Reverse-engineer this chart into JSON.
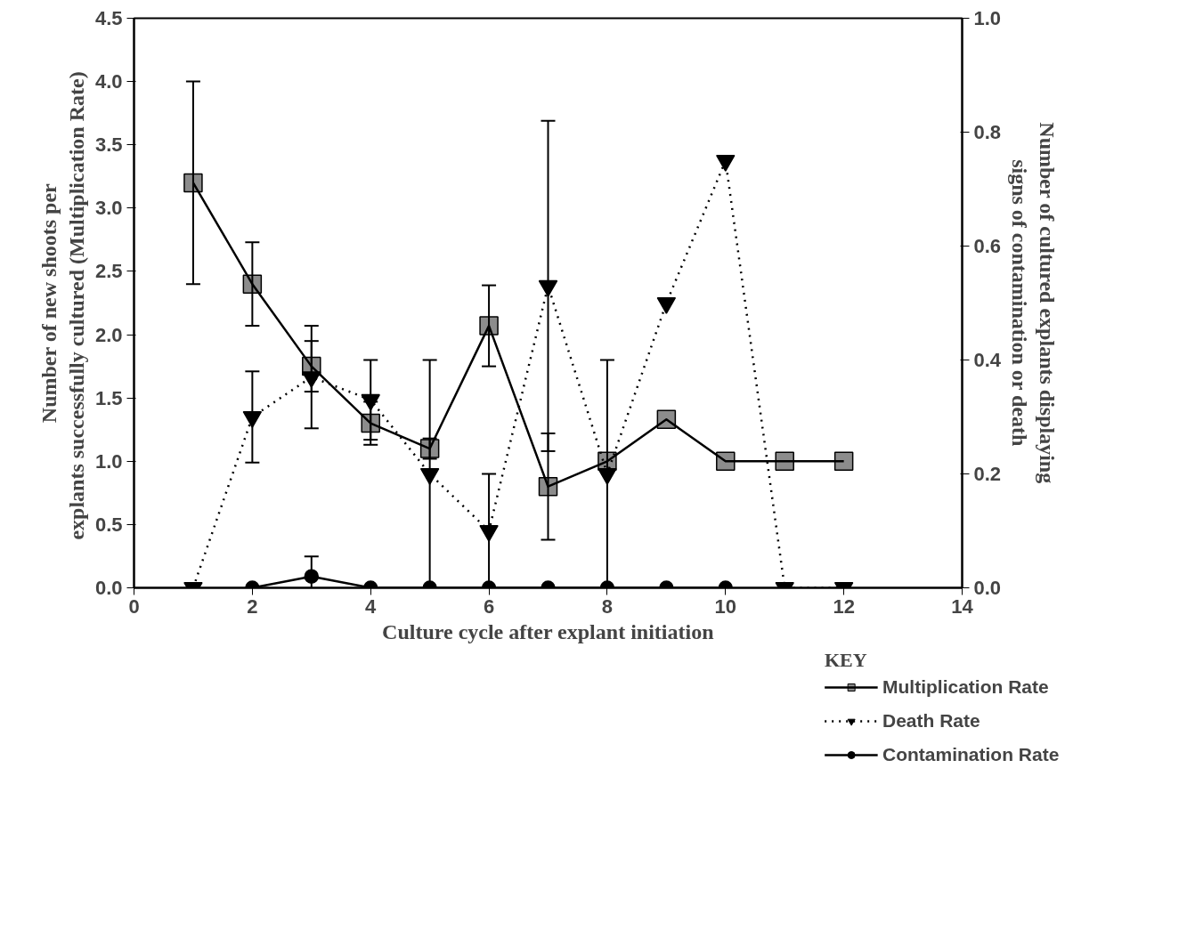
{
  "chart_data": {
    "type": "line",
    "xlabel": "Culture cycle after explant initiation",
    "ylabel": "Number of new shoots per\nexplants successfully cultured  (Multiplication Rate)",
    "y2label": "Number of cultured explants displaying\nsigns of contamination or death",
    "legend_title": "KEY",
    "xlim": [
      0,
      14
    ],
    "xticks": [
      0,
      2,
      4,
      6,
      8,
      10,
      12,
      14
    ],
    "ylim": [
      0,
      4.5
    ],
    "yticks": [
      {
        "value": 0,
        "label": "0.0"
      },
      {
        "value": 0.5,
        "label": "0.5"
      },
      {
        "value": 1,
        "label": "1.0"
      },
      {
        "value": 1.5,
        "label": "1.5"
      },
      {
        "value": 2,
        "label": "2.0"
      },
      {
        "value": 2.5,
        "label": "2.5"
      },
      {
        "value": 3,
        "label": "3.0"
      },
      {
        "value": 3.5,
        "label": "3.5"
      },
      {
        "value": 4,
        "label": "4.0"
      },
      {
        "value": 4.5,
        "label": "4.5"
      }
    ],
    "y2lim": [
      0,
      1.0
    ],
    "y2ticks": [
      {
        "value": 0,
        "label": "0.0"
      },
      {
        "value": 0.2,
        "label": "0.2"
      },
      {
        "value": 0.4,
        "label": "0.4"
      },
      {
        "value": 0.6,
        "label": "0.6"
      },
      {
        "value": 0.8,
        "label": "0.8"
      },
      {
        "value": 1.0,
        "label": "1.0"
      }
    ],
    "grid": false,
    "legend": "bottom right",
    "series": [
      {
        "name": "Multiplication Rate",
        "color": "#000000",
        "marker": "square",
        "line_style": "solid",
        "x": [
          1,
          2,
          3,
          4,
          5,
          6,
          7,
          8,
          9,
          10,
          11,
          12
        ],
        "values": [
          3.2,
          2.4,
          1.75,
          1.3,
          1.1,
          2.07,
          0.8,
          1.0,
          1.33,
          1.0,
          1.0,
          1.0
        ],
        "errors": [
          0.8,
          0.33,
          0.2,
          0.17,
          0.08,
          0.32,
          0.42,
          null,
          null,
          null,
          null,
          null
        ]
      },
      {
        "name": "Death Rate",
        "color": "#000000",
        "marker": "triangle",
        "line_style": "dotted",
        "axis": "y2",
        "x": [
          1,
          2,
          3,
          4,
          5,
          6,
          7,
          8,
          9,
          10,
          11,
          12
        ],
        "values": [
          0,
          0.3,
          0.37,
          0.33,
          0.2,
          0.1,
          0.53,
          0.2,
          0.5,
          0.75,
          0,
          0
        ],
        "errors": [
          null,
          0.08,
          0.09,
          0.07,
          0.2,
          0.1,
          0.29,
          0.2,
          null,
          null,
          null,
          null
        ]
      },
      {
        "name": "Contamination Rate",
        "color": "#000000",
        "marker": "circle",
        "line_style": "solid",
        "axis": "y2",
        "x": [
          2,
          3,
          4,
          5,
          6,
          7,
          8,
          9,
          10
        ],
        "values": [
          0,
          0.02,
          0,
          0,
          0,
          0,
          0,
          0,
          0
        ],
        "errors": [
          null,
          0.035,
          null,
          null,
          null,
          null,
          null,
          null,
          null
        ]
      }
    ]
  }
}
